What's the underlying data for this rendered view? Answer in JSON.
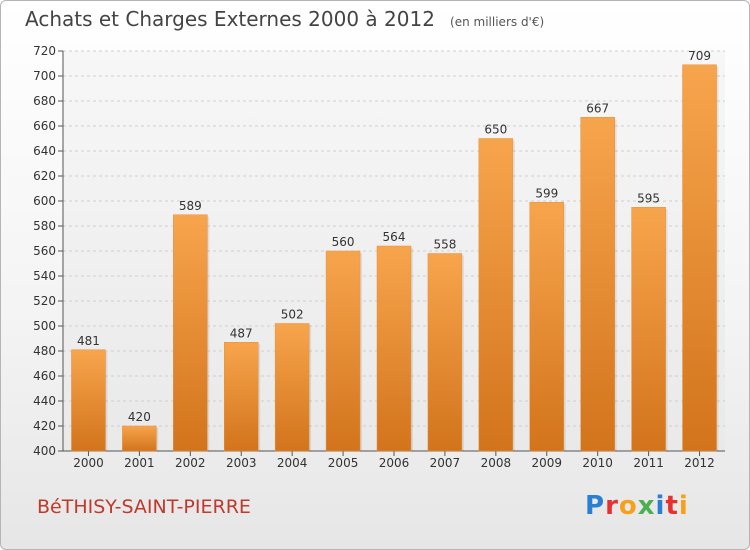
{
  "header": {
    "title": "Achats et Charges Externes 2000 à 2012",
    "units": "(en milliers d'€)"
  },
  "footer": {
    "commune": "BéTHISY-SAINT-PIERRE",
    "logo": {
      "letters": [
        "P",
        "r",
        "o",
        "x",
        "i",
        "t",
        "i"
      ],
      "colors": [
        "#2a7fd4",
        "#e8312f",
        "#f7a11a",
        "#4caf50",
        "#2a7fd4",
        "#e8312f",
        "#f7a11a"
      ]
    }
  },
  "chart_data": {
    "type": "bar",
    "categories": [
      "2000",
      "2001",
      "2002",
      "2003",
      "2004",
      "2005",
      "2006",
      "2007",
      "2008",
      "2009",
      "2010",
      "2011",
      "2012"
    ],
    "values": [
      481,
      420,
      589,
      487,
      502,
      560,
      564,
      558,
      650,
      599,
      667,
      595,
      709
    ],
    "ylim": [
      400,
      720
    ],
    "ytick_step": 20,
    "grid": true,
    "bar_color_top": "#f7a54d",
    "bar_color_bottom": "#d2741c"
  }
}
